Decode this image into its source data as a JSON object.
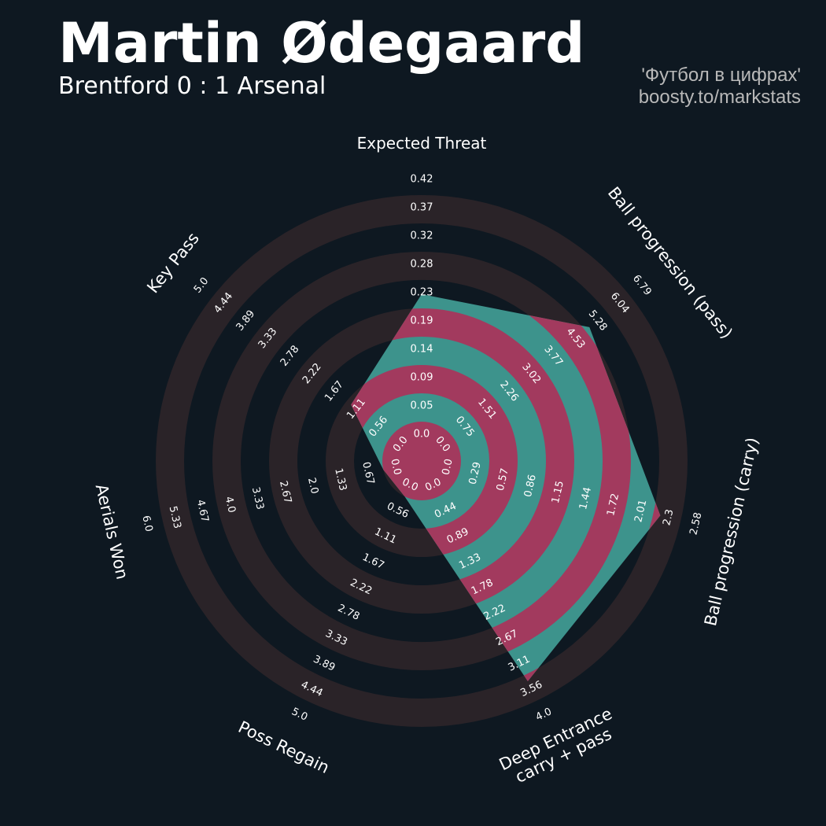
{
  "header": {
    "title": "Martin Ødegaard",
    "subtitle": "Brentford 0 : 1 Arsenal",
    "credit_line1": "'Футбол в цифрах'",
    "credit_line2": "boosty.to/markstats"
  },
  "colors": {
    "background": "#0e1821",
    "ring_band": "#2a2328",
    "player_fill": "#3d938c",
    "player_ring": "#a23a5e",
    "label_text": "#ffffff"
  },
  "chart_data": {
    "type": "radar",
    "title": "Martin Ødegaard",
    "subtitle": "Brentford 0 : 1 Arsenal",
    "metrics": [
      {
        "name": "Expected Threat",
        "label_lines": [
          "Expected Threat"
        ],
        "value": 0.21,
        "range": [
          0.0,
          0.42
        ],
        "ticks": [
          "0.0",
          "0.05",
          "0.09",
          "0.14",
          "0.19",
          "0.23",
          "0.28",
          "0.32",
          "0.37",
          "0.42"
        ]
      },
      {
        "name": "Ball progression (pass)",
        "label_lines": [
          "Ball progression (pass)"
        ],
        "value": 4.67,
        "range": [
          0.0,
          6.79
        ],
        "ticks": [
          "0.0",
          "0.75",
          "1.51",
          "2.26",
          "3.02",
          "3.77",
          "4.53",
          "5.28",
          "6.04",
          "6.79"
        ]
      },
      {
        "name": "Ball progression (carry)",
        "label_lines": [
          "Ball progression (carry)"
        ],
        "value": 2.08,
        "range": [
          0.0,
          2.58
        ],
        "ticks": [
          "0.0",
          "0.29",
          "0.57",
          "0.86",
          "1.15",
          "1.44",
          "1.72",
          "2.01",
          "2.3",
          "2.58"
        ]
      },
      {
        "name": "Deep Entrance carry + pass",
        "label_lines": [
          "Deep Entrance",
          "carry + pass"
        ],
        "value": 3.22,
        "range": [
          0.0,
          4.0
        ],
        "ticks": [
          "0.0",
          "0.44",
          "0.89",
          "1.33",
          "1.78",
          "2.22",
          "2.67",
          "3.11",
          "3.56",
          "4.0"
        ]
      },
      {
        "name": "Poss Regain",
        "label_lines": [
          "Poss Regain"
        ],
        "value": 0.0,
        "range": [
          0.0,
          5.0
        ],
        "ticks": [
          "0.0",
          "0.56",
          "1.11",
          "1.67",
          "2.22",
          "2.78",
          "3.33",
          "3.89",
          "4.44",
          "5.0"
        ]
      },
      {
        "name": "Aerials Won",
        "label_lines": [
          "Aerials Won"
        ],
        "value": 0.0,
        "range": [
          0.0,
          6.0
        ],
        "ticks": [
          "0.0",
          "0.67",
          "1.33",
          "2.0",
          "2.67",
          "3.33",
          "4.0",
          "4.67",
          "5.33",
          "6.0"
        ]
      },
      {
        "name": "Key Pass",
        "label_lines": [
          "Key Pass"
        ],
        "value": 1.0,
        "range": [
          0.0,
          5.0
        ],
        "ticks": [
          "0.0",
          "0.56",
          "1.11",
          "1.67",
          "2.22",
          "2.78",
          "3.33",
          "3.89",
          "4.44",
          "5.0"
        ]
      }
    ]
  }
}
